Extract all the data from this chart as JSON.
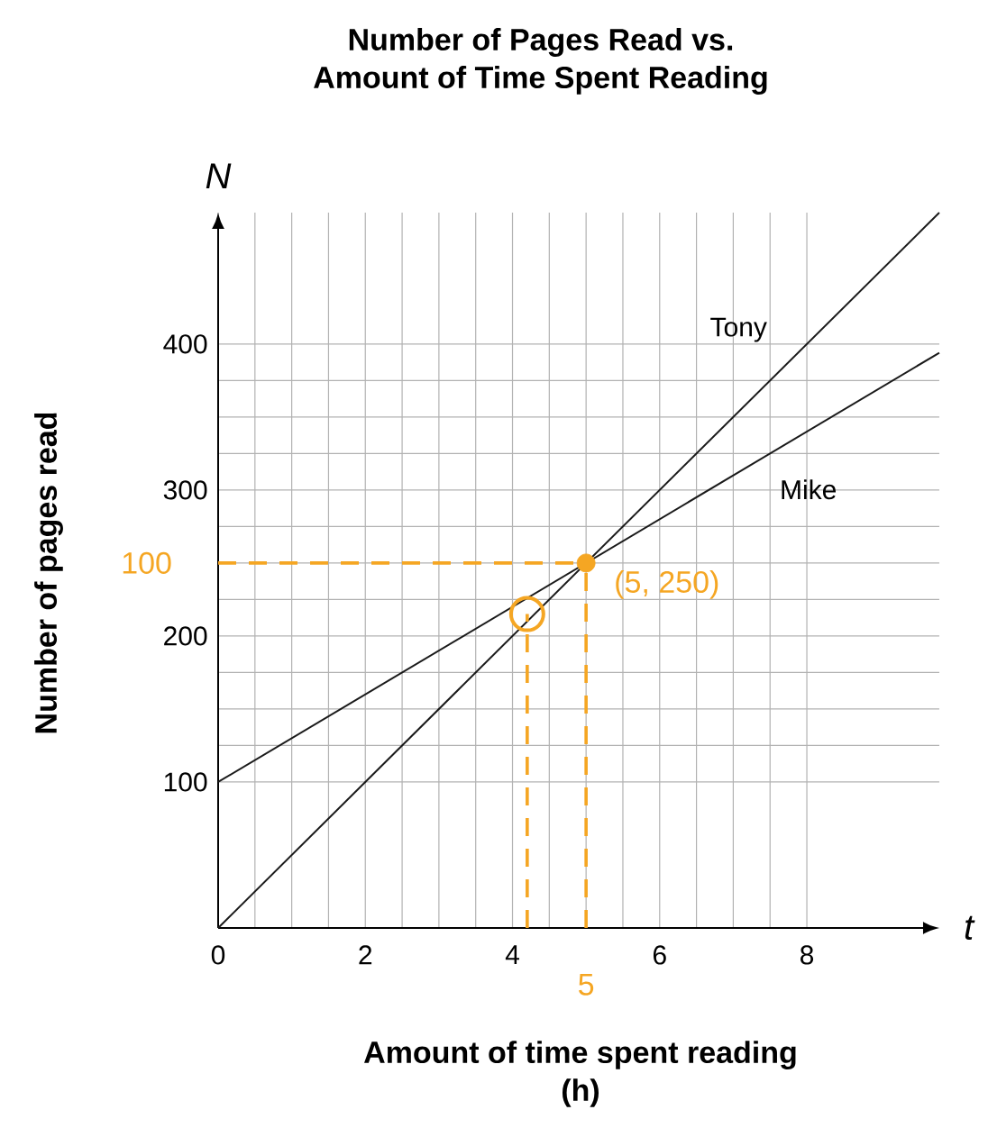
{
  "chart_data": {
    "type": "line",
    "title": "Number of Pages Read vs.\nAmount of Time Spent Reading",
    "xlabel": "Amount of time spent reading\n(h)",
    "ylabel": "Number of pages read",
    "series": [
      {
        "name": "Tony",
        "color": "#1a1a1a",
        "x": [
          0,
          9.8
        ],
        "values": [
          0,
          490
        ]
      },
      {
        "name": "Mike",
        "color": "#1a1a1a",
        "x": [
          0,
          9.8
        ],
        "values": [
          100,
          394
        ]
      },
      {
        "type": "line",
        "color": "#f5a623",
        "line_style": "dashed",
        "x": [
          0,
          5
        ],
        "values": [
          250,
          250
        ]
      },
      {
        "type": "line",
        "color": "#f5a623",
        "line_style": "dashed",
        "x": [
          5,
          5
        ],
        "values": [
          0,
          250
        ]
      },
      {
        "type": "line",
        "color": "#f5a623",
        "line_style": "dashed",
        "x": [
          4.2,
          4.2
        ],
        "values": [
          0,
          215
        ]
      },
      {
        "type": "scatter",
        "color": "#f5a623",
        "marker": "circle",
        "x": [
          5
        ],
        "values": [
          250
        ]
      },
      {
        "type": "scatter",
        "color": "#f5a623",
        "marker": "circle",
        "x": [
          4.2
        ],
        "values": [
          215
        ]
      }
    ],
    "xlim": [
      0,
      9.8
    ],
    "ylim": [
      0,
      490
    ],
    "xticks": [
      0,
      2,
      4,
      6,
      8
    ],
    "yticks": [
      100,
      200,
      300,
      400
    ],
    "grid": true,
    "annotations": [
      "N",
      "t",
      "100",
      {
        "text": "(5, 250)",
        "x": 5,
        "y": 250
      },
      "5"
    ]
  }
}
